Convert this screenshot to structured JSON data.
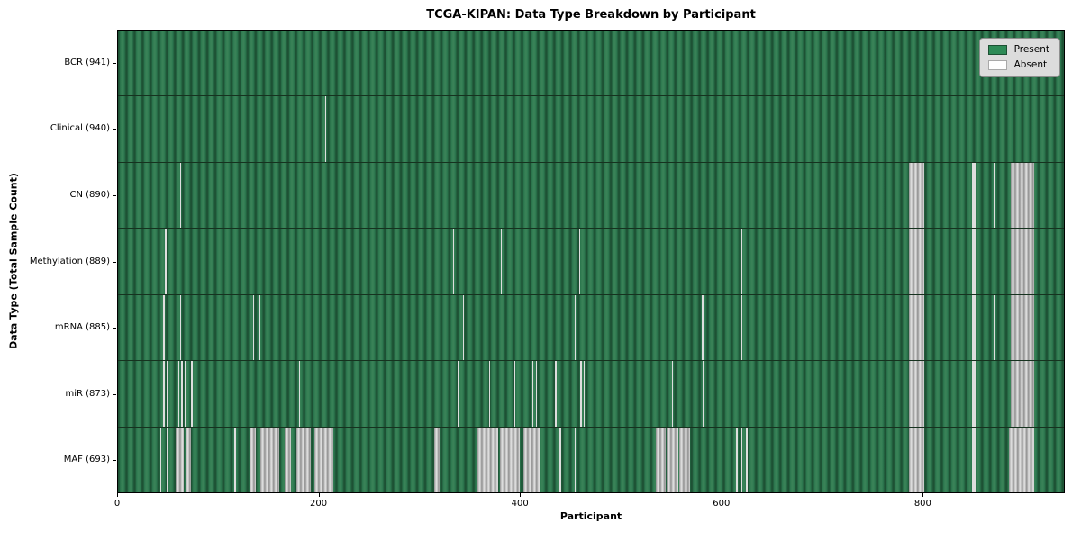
{
  "title": "TCGA-KIPAN: Data Type Breakdown by Participant",
  "xlabel": "Participant",
  "ylabel": "Data Type (Total Sample Count)",
  "legend": {
    "entries": [
      {
        "label": "Present",
        "color": "#2e8b57"
      },
      {
        "label": "Absent",
        "color": "#ffffff"
      }
    ]
  },
  "colors": {
    "present_green": "#2e8b57",
    "present_stripe_dark": "#1d5134",
    "present_stripe_light": "#398257",
    "absent_gray_edge": "#8e8e8e",
    "absent_gray_light": "#e2e2e2",
    "row_separator": "#16321f",
    "frame": "#000000",
    "legend_bg": "#dcdcdc"
  },
  "chart_data": {
    "type": "heatmap",
    "subtype": "presence-absence-matrix",
    "title": "TCGA-KIPAN: Data Type Breakdown by Participant",
    "xlabel": "Participant",
    "ylabel": "Data Type (Total Sample Count)",
    "x_range": [
      0,
      941
    ],
    "x_ticks": [
      0,
      200,
      400,
      600,
      800
    ],
    "n_participants": 941,
    "legend_position": "upper right",
    "legend_entries": [
      "Present",
      "Absent"
    ],
    "rows": [
      {
        "label": "BCR (941)",
        "data_type": "BCR",
        "present_count": 941,
        "absent_ranges": []
      },
      {
        "label": "Clinical (940)",
        "data_type": "Clinical",
        "present_count": 940,
        "absent_ranges": [
          [
            206,
            207
          ]
        ]
      },
      {
        "label": "CN (890)",
        "data_type": "CN",
        "present_count": 890,
        "absent_ranges": [
          [
            62,
            63
          ],
          [
            618,
            619
          ],
          [
            787,
            802
          ],
          [
            850,
            853
          ],
          [
            871,
            873
          ],
          [
            888,
            911
          ]
        ]
      },
      {
        "label": "Methylation (889)",
        "data_type": "Methylation",
        "present_count": 889,
        "absent_ranges": [
          [
            47,
            48
          ],
          [
            333,
            334
          ],
          [
            381,
            382
          ],
          [
            459,
            460
          ],
          [
            620,
            621
          ],
          [
            787,
            802
          ],
          [
            850,
            853
          ],
          [
            888,
            911
          ]
        ]
      },
      {
        "label": "mRNA (885)",
        "data_type": "mRNA",
        "present_count": 885,
        "absent_ranges": [
          [
            45,
            46
          ],
          [
            62,
            63
          ],
          [
            134,
            135
          ],
          [
            140,
            141
          ],
          [
            343,
            344
          ],
          [
            454,
            455
          ],
          [
            581,
            582
          ],
          [
            620,
            621
          ],
          [
            787,
            802
          ],
          [
            850,
            853
          ],
          [
            871,
            873
          ],
          [
            888,
            911
          ]
        ]
      },
      {
        "label": "miR (873)",
        "data_type": "miR",
        "present_count": 873,
        "absent_ranges": [
          [
            45,
            46
          ],
          [
            48,
            49
          ],
          [
            60,
            61
          ],
          [
            63,
            64
          ],
          [
            66,
            67
          ],
          [
            73,
            74
          ],
          [
            180,
            181
          ],
          [
            338,
            339
          ],
          [
            369,
            370
          ],
          [
            394,
            395
          ],
          [
            412,
            413
          ],
          [
            416,
            417
          ],
          [
            435,
            436
          ],
          [
            460,
            461
          ],
          [
            463,
            464
          ],
          [
            551,
            552
          ],
          [
            582,
            583
          ],
          [
            618,
            619
          ],
          [
            787,
            802
          ],
          [
            850,
            853
          ],
          [
            888,
            911
          ]
        ]
      },
      {
        "label": "MAF (693)",
        "data_type": "MAF",
        "present_count": 693,
        "absent_ranges": [
          [
            42,
            43
          ],
          [
            48,
            49
          ],
          [
            57,
            65
          ],
          [
            67,
            73
          ],
          [
            116,
            117
          ],
          [
            131,
            137
          ],
          [
            142,
            160
          ],
          [
            166,
            172
          ],
          [
            177,
            192
          ],
          [
            195,
            214
          ],
          [
            284,
            285
          ],
          [
            315,
            320
          ],
          [
            358,
            378
          ],
          [
            380,
            400
          ],
          [
            403,
            419
          ],
          [
            438,
            441
          ],
          [
            454,
            455
          ],
          [
            535,
            545
          ],
          [
            546,
            557
          ],
          [
            558,
            569
          ],
          [
            615,
            616
          ],
          [
            618,
            619
          ],
          [
            620,
            621
          ],
          [
            625,
            626
          ],
          [
            787,
            802
          ],
          [
            850,
            853
          ],
          [
            886,
            911
          ]
        ]
      }
    ]
  }
}
